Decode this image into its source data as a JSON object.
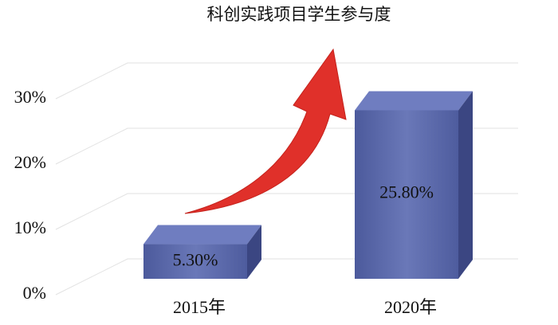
{
  "chart_data": {
    "type": "bar3d",
    "title": "科创实践项目学生参与度",
    "categories": [
      "2015年",
      "2020年"
    ],
    "values": [
      5.3,
      25.8
    ],
    "value_labels": [
      "5.30%",
      "25.80%"
    ],
    "color": "#5a67a8",
    "ylim": [
      0,
      40
    ],
    "yticks": [
      {
        "value": 0,
        "label": "0%"
      },
      {
        "value": 10,
        "label": "10%"
      },
      {
        "value": 20,
        "label": "20%"
      },
      {
        "value": 30,
        "label": "30%"
      }
    ],
    "grid": true
  }
}
